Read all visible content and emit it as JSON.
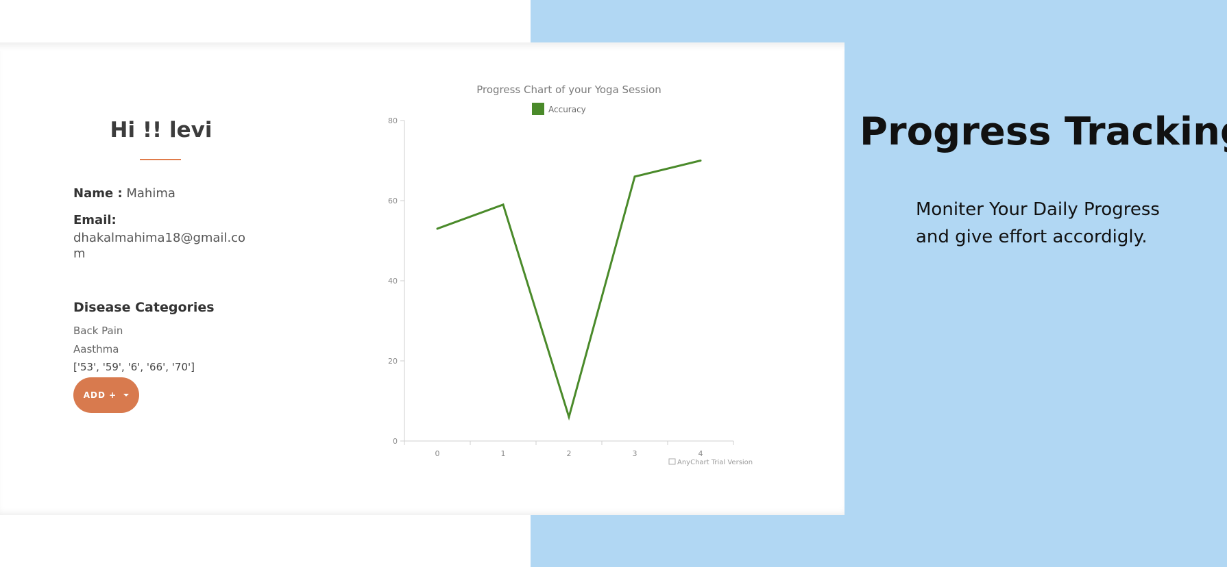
{
  "profile": {
    "greeting": "Hi !! levi",
    "name_label": "Name :",
    "name_value": "Mahima",
    "email_label": "Email:",
    "email_value": "dhakalmahima18@gmail.com",
    "disease_heading": "Disease Categories",
    "diseases": [
      "Back Pain",
      "Aasthma"
    ],
    "values_text": "['53', '59', '6', '66', '70']",
    "add_button_label": "ADD +"
  },
  "marketing": {
    "headline": "Progress Tracking",
    "subtext": "Moniter Your Daily Progress and give effort accordigly."
  },
  "colors": {
    "background_blue": "#b1d7f3",
    "accent_orange": "#d87a4e",
    "series_green": "#4a8a2a"
  },
  "chart_data": {
    "type": "line",
    "title": "Progress Chart of your Yoga Session",
    "x": [
      0,
      1,
      2,
      3,
      4
    ],
    "series": [
      {
        "name": "Accuracy",
        "values": [
          53,
          59,
          6,
          66,
          70
        ]
      }
    ],
    "ylim": [
      0,
      80
    ],
    "yticks": [
      0,
      20,
      40,
      60,
      80
    ],
    "xticks": [
      0,
      1,
      2,
      3,
      4
    ],
    "legend": "top-center",
    "watermark": "AnyChart Trial Version"
  }
}
